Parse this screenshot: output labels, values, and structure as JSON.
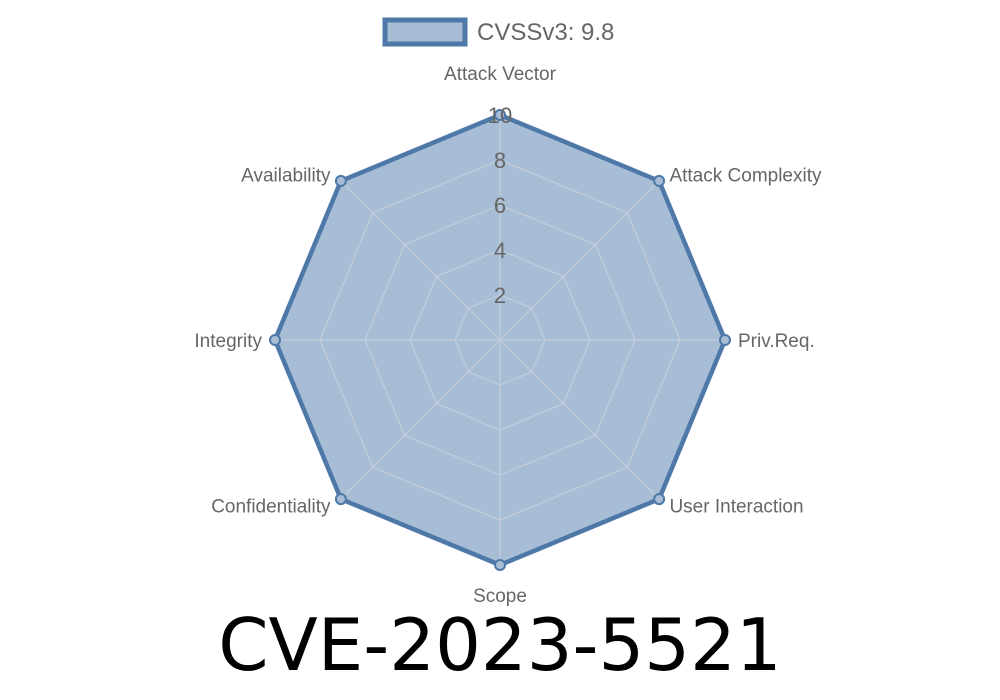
{
  "chart_data": {
    "type": "radar",
    "axes": [
      "Attack Vector",
      "Attack Complexity",
      "Priv.Req.",
      "User Interaction",
      "Scope",
      "Confidentiality",
      "Integrity",
      "Availability"
    ],
    "series": [
      {
        "name": "CVSSv3: 9.8",
        "values": [
          10,
          10,
          10,
          10,
          10,
          10,
          10,
          10
        ]
      }
    ],
    "rlim": [
      0,
      10
    ],
    "ticks": [
      "2",
      "4",
      "6",
      "8",
      "10"
    ],
    "tick_values": [
      2,
      4,
      6,
      8,
      10
    ],
    "grid": true,
    "legend_position": "top",
    "colors": {
      "stroke": "#4e78a8",
      "fill": "#a7bcd5",
      "grid": "#c4cdd9"
    }
  },
  "title": "CVE-2023-5521"
}
